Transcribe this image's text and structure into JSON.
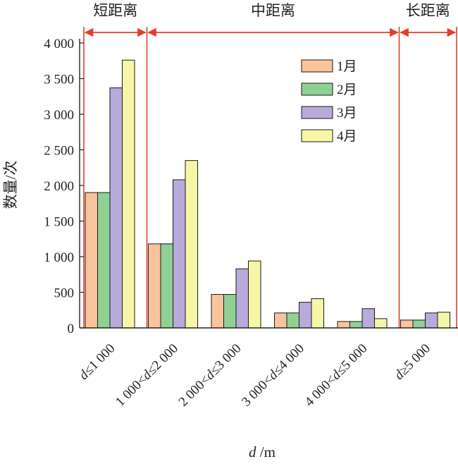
{
  "chart_data": {
    "type": "bar",
    "ylabel": "数量/次",
    "xlabel_var": "d",
    "xlabel_unit": " /m",
    "ylim": [
      0,
      4000
    ],
    "yticks": [
      "0",
      "500",
      "1 000",
      "1 500",
      "2 000",
      "2 500",
      "3 000",
      "3 500",
      "4 000"
    ],
    "categories": [
      {
        "pre": "",
        "var": "d",
        "post": "≤1 000"
      },
      {
        "pre": "1 000<",
        "var": "d",
        "post": "≤2 000"
      },
      {
        "pre": "2 000<",
        "var": "d",
        "post": "≤3 000"
      },
      {
        "pre": "3 000<",
        "var": "d",
        "post": "≤4 000"
      },
      {
        "pre": "4 000<",
        "var": "d",
        "post": "≤5 000"
      },
      {
        "pre": "",
        "var": "d",
        "post": "≥5 000"
      }
    ],
    "series": [
      {
        "name": "1月",
        "color": "#F9C39B",
        "values": [
          1900,
          1180,
          470,
          210,
          90,
          110
        ]
      },
      {
        "name": "2月",
        "color": "#8FD194",
        "values": [
          1900,
          1180,
          470,
          210,
          90,
          110
        ]
      },
      {
        "name": "3月",
        "color": "#B8AADA",
        "values": [
          3370,
          2080,
          830,
          360,
          270,
          210
        ]
      },
      {
        "name": "4月",
        "color": "#F7F6A6",
        "values": [
          3760,
          2350,
          940,
          410,
          130,
          220
        ]
      }
    ],
    "regions": [
      {
        "label": "短距离",
        "from": 0,
        "to": 1
      },
      {
        "label": "中距离",
        "from": 1,
        "to": 5
      },
      {
        "label": "长距离",
        "from": 5,
        "to": 6
      }
    ],
    "region_color": "#E0402A",
    "legend_position": "top-right",
    "grid": false
  }
}
